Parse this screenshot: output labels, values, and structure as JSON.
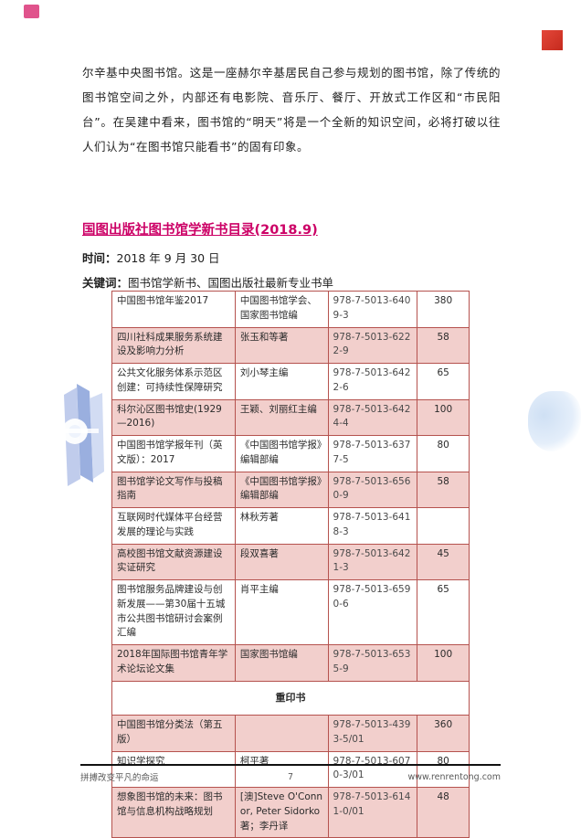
{
  "document": {
    "intro_paragraph": "尔辛基中央图书馆。这是一座赫尔辛基居民自己参与规划的图书馆，除了传统的图书馆空间之外，内部还有电影院、音乐厅、餐厅、开放式工作区和“市民阳台”。在吴建中看来，图书馆的“明天”将是一个全新的知识空间，必将打破以往人们认为“在图书馆只能看书”的固有印象。",
    "heading": "国图出版社图书馆学新书目录(2018.9)",
    "meta": {
      "date_label": "时间：",
      "date_value": "2018 年 9 月 30 日",
      "keywords_label": "关键词：",
      "keywords_value": "图书馆学新书、国图出版社最新专业书单"
    }
  },
  "table": {
    "rows": [
      {
        "type": "book",
        "shade": "white",
        "title": "中国图书馆年鉴2017",
        "author": "中国图书馆学会、国家图书馆编",
        "isbn": "978-7-5013-6409-3",
        "price": "380"
      },
      {
        "type": "book",
        "shade": "pink",
        "title": "四川社科成果服务系统建设及影响力分析",
        "author": "张玉和等著",
        "isbn": "978-7-5013-6222-9",
        "price": "58"
      },
      {
        "type": "book",
        "shade": "white",
        "title": "公共文化服务体系示范区创建：可持续性保障研究",
        "author": "刘小琴主编",
        "isbn": "978-7-5013-6422-6",
        "price": "65"
      },
      {
        "type": "book",
        "shade": "pink",
        "title": "科尔沁区图书馆史(1929—2016)",
        "author": "王颖、刘丽红主编",
        "isbn": "978-7-5013-6424-4",
        "price": "100"
      },
      {
        "type": "book",
        "shade": "white",
        "title": "中国图书馆学报年刊（英文版）：2017",
        "author": "《中国图书馆学报》编辑部编",
        "isbn": "978-7-5013-6377-5",
        "price": "80"
      },
      {
        "type": "book",
        "shade": "pink",
        "title": "图书馆学论文写作与投稿指南",
        "author": "《中国图书馆学报》编辑部编",
        "isbn": "978-7-5013-6560-9",
        "price": "58"
      },
      {
        "type": "book",
        "shade": "white",
        "title": "互联网时代媒体平台经营发展的理论与实践",
        "author": "林秋芳著",
        "isbn": "978-7-5013-6418-3",
        "price": ""
      },
      {
        "type": "book",
        "shade": "pink",
        "title": "高校图书馆文献资源建设实证研究",
        "author": "段双喜著",
        "isbn": "978-7-5013-6421-3",
        "price": "45"
      },
      {
        "type": "book",
        "shade": "white",
        "title": "图书馆服务品牌建设与创新发展——第30届十五城市公共图书馆研讨会案例汇编",
        "author": "肖平主编",
        "isbn": "978-7-5013-6590-6",
        "price": "65"
      },
      {
        "type": "book",
        "shade": "pink",
        "title": "2018年国际图书馆青年学术论坛论文集",
        "author": "国家图书馆编",
        "isbn": "978-7-5013-6535-9",
        "price": "100"
      },
      {
        "type": "section",
        "label": "重印书"
      },
      {
        "type": "book",
        "shade": "pink",
        "title": "中国图书馆分类法（第五版）",
        "author": "",
        "isbn": "978-7-5013-4393-5/01",
        "price": "360"
      },
      {
        "type": "book",
        "shade": "white",
        "title": "知识学探究",
        "author": "柯平著",
        "isbn": "978-7-5013-6070-3/01",
        "price": "80"
      },
      {
        "type": "book",
        "shade": "pink",
        "title": "想象图书馆的未来：图书馆与信息机构战略规划",
        "author": "[澳]Steve O'Connor, Peter Sidorko著；李丹译",
        "isbn": "978-7-5013-6141-0/01",
        "price": "48"
      }
    ]
  },
  "footer": {
    "left_text": "拼搏改变平凡的命运",
    "page_number": "7",
    "right_text": "www.renrentong.com"
  },
  "colors": {
    "heading_link": "#cc0066",
    "table_border": "#b5524e",
    "row_pink_bg": "#f2cfcc",
    "pink_square": "#e0538c",
    "red_square": "#d03a2a",
    "crystal_blue": "#9fb4e2",
    "wave_blue": "#d9e6f7",
    "footer_text": "#595959"
  }
}
